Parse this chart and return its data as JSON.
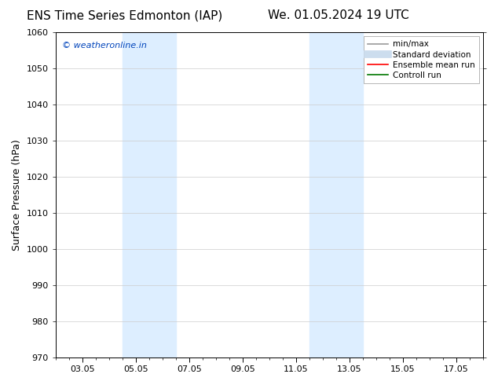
{
  "title_left": "ENS Time Series Edmonton (IAP)",
  "title_right": "We. 01.05.2024 19 UTC",
  "ylabel": "Surface Pressure (hPa)",
  "ylim": [
    970,
    1060
  ],
  "yticks": [
    970,
    980,
    990,
    1000,
    1010,
    1020,
    1030,
    1040,
    1050,
    1060
  ],
  "xtick_labels": [
    "03.05",
    "05.05",
    "07.05",
    "09.05",
    "11.05",
    "13.05",
    "15.05",
    "17.05"
  ],
  "xtick_positions": [
    2,
    4,
    6,
    8,
    10,
    12,
    14,
    16
  ],
  "xlim": [
    1,
    17
  ],
  "shaded_bands": [
    {
      "xmin": 3.5,
      "xmax": 5.5,
      "color": "#ddeeff"
    },
    {
      "xmin": 10.5,
      "xmax": 12.5,
      "color": "#ddeeff"
    }
  ],
  "watermark": "© weatheronline.in",
  "watermark_color": "#0044bb",
  "legend_items": [
    {
      "label": "min/max",
      "color": "#999999",
      "lw": 1.2
    },
    {
      "label": "Standard deviation",
      "color": "#ccddee",
      "lw": 7
    },
    {
      "label": "Ensemble mean run",
      "color": "#ff0000",
      "lw": 1.2
    },
    {
      "label": "Controll run",
      "color": "#007700",
      "lw": 1.2
    }
  ],
  "background_color": "#ffffff",
  "grid_color": "#cccccc",
  "title_fontsize": 11,
  "tick_fontsize": 8,
  "ylabel_fontsize": 9,
  "legend_fontsize": 7.5
}
